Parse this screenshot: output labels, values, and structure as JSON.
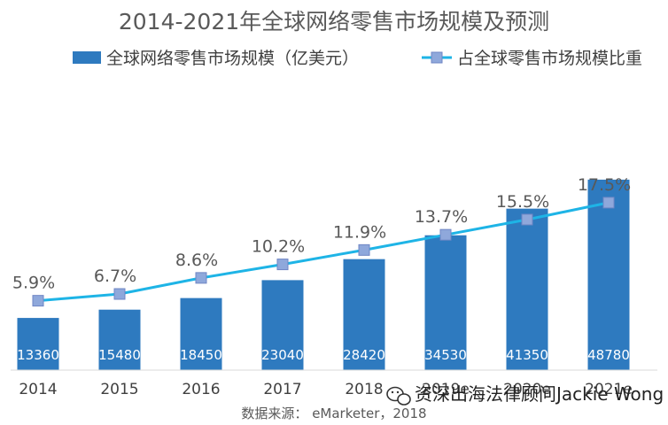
{
  "chart_data": {
    "type": "bar",
    "title": "2014-2021年全球网络零售市场规模及预测",
    "categories": [
      "2014",
      "2015",
      "2016",
      "2017",
      "2018",
      "2019e",
      "2020e",
      "2021e"
    ],
    "series": [
      {
        "name": "全球网络零售市场规模（亿美元）",
        "kind": "bar",
        "color": "#2E7ABF",
        "values": [
          13360,
          15480,
          18450,
          23040,
          28420,
          34530,
          41350,
          48780
        ]
      },
      {
        "name": "占全球零售市场规模比重",
        "kind": "line",
        "color": "#1EB4E6",
        "marker_color": "#8FA8DB",
        "values": [
          5.9,
          6.7,
          8.6,
          10.2,
          11.9,
          13.7,
          15.5,
          17.5
        ],
        "labels": [
          "5.9%",
          "6.7%",
          "8.6%",
          "10.2%",
          "11.9%",
          "13.7%",
          "15.5%",
          "17.5%"
        ]
      }
    ],
    "legend_position": "top",
    "grid": false,
    "source": "数据来源： eMarketer，2018"
  },
  "watermark": {
    "text": "资深出海法律顾问Jackie Wong",
    "icon": "wechat-icon"
  }
}
